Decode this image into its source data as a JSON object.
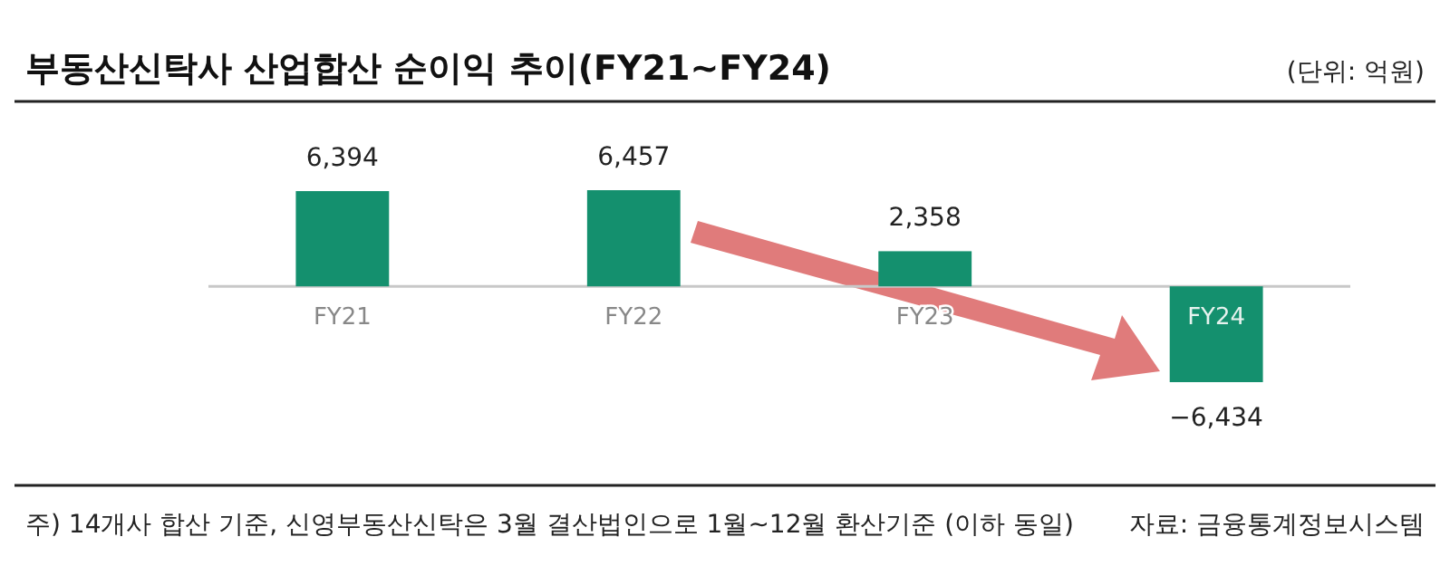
{
  "chart_data": {
    "type": "bar",
    "title": "부동산신탁사 산업합산 순이익 추이(FY21~FY24)",
    "categories": [
      "FY21",
      "FY22",
      "FY23",
      "FY24"
    ],
    "values": [
      6394,
      6457,
      2358,
      -6434
    ],
    "color": "#14906e",
    "value_labels": [
      "6,394",
      "6,457",
      "2,358",
      "−6,434"
    ],
    "annotations": [
      "(단위: 억원)",
      "주) 14개사 합산 기준, 신영부동산신탁은 3월 결산법인으로 1월~12월 환산기준 (이하 동일)",
      "자료: 금융통계정보시스템"
    ]
  }
}
